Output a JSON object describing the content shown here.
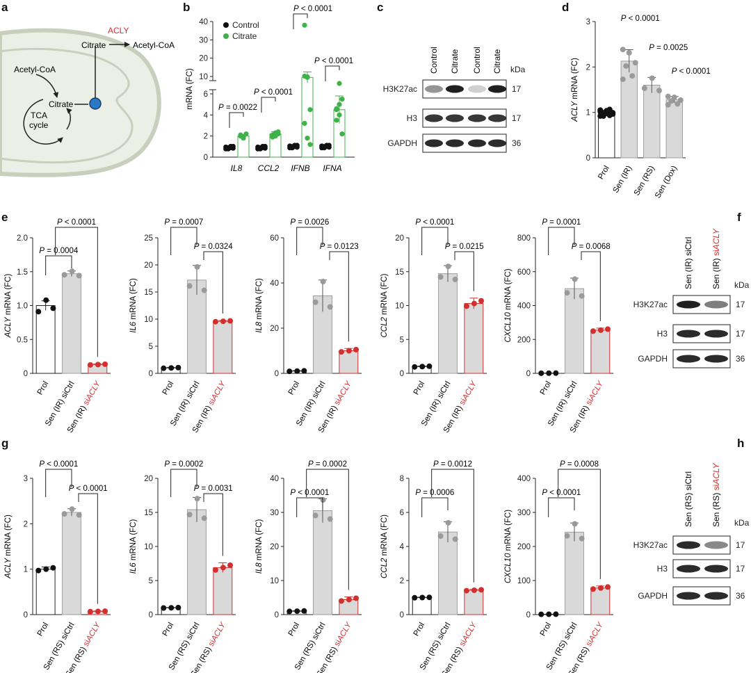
{
  "colors": {
    "black": "#111111",
    "green": "#3fb24a",
    "red": "#d32f2f",
    "bar": "#d9d9d9",
    "bar_edge": "#9e9e9e",
    "dot_grey": "#9a9a9a",
    "mito_fill": "#ecefe5",
    "mito_edge": "#c9cfbd",
    "node": "#2a79c7",
    "acly_red": "#d32f2f"
  },
  "panel_labels": [
    "a",
    "b",
    "c",
    "d",
    "e",
    "f",
    "g",
    "h"
  ],
  "panel_a": {
    "acly": "ACLY",
    "citrate_top": "Citrate",
    "acetyl_coa_top": "Acetyl-CoA",
    "acetyl_coa_left": "Acetyl-CoA",
    "citrate_mid": "Citrate",
    "tca": "TCA",
    "cycle": "cycle"
  },
  "blot_c": {
    "lanes": [
      "Control",
      "Citrate",
      "Control",
      "Citrate"
    ],
    "rows": [
      "H3K27ac",
      "H3",
      "GAPDH"
    ],
    "kda_label": "kDa",
    "kda": [
      "17",
      "17",
      "36"
    ],
    "icons": [
      "western-blot-band"
    ]
  },
  "blot_f": {
    "lanes": [
      {
        "pre": "Sen (IR) ",
        "mid": "siCtrl",
        "mid_red": false
      },
      {
        "pre": "Sen (IR) ",
        "mid": "siACLY",
        "mid_red": true
      }
    ],
    "rows": [
      "H3K27ac",
      "H3",
      "GAPDH"
    ],
    "kda_label": "kDa",
    "kda": [
      "17",
      "17",
      "36"
    ]
  },
  "blot_h": {
    "lanes": [
      {
        "pre": "Sen (RS) ",
        "mid": "siCtrl",
        "mid_red": false
      },
      {
        "pre": "Sen (RS) ",
        "mid": "siACLY",
        "mid_red": true
      }
    ],
    "rows": [
      "H3K27ac",
      "H3",
      "GAPDH"
    ],
    "kda_label": "kDa",
    "kda": [
      "17",
      "17",
      "36"
    ]
  },
  "chart_data": [
    {
      "id": "b",
      "type": "scatter",
      "ylabel": "mRNA (FC)",
      "legend": [
        "Control",
        "Citrate"
      ],
      "legend_position": "top-left",
      "categories": [
        "IL8",
        "CCL2",
        "IFNB",
        "IFNA"
      ],
      "y_lower_ticks": [
        "0",
        "2",
        "4",
        "6"
      ],
      "y_upper_ticks": [
        "10",
        "20",
        "30",
        "40"
      ],
      "y_break": [
        6,
        10
      ],
      "series": [
        {
          "name": "Control",
          "means": [
            0.9,
            0.9,
            1.0,
            1.0
          ]
        },
        {
          "name": "Citrate",
          "means": [
            2.0,
            2.2,
            9.5,
            4.5
          ],
          "sem": [
            0.15,
            0.2,
            3,
            1.3
          ]
        }
      ],
      "annotations": [
        "P = 0.0022",
        "P < 0.0001",
        "P < 0.0001",
        "P < 0.0001"
      ]
    },
    {
      "id": "d",
      "type": "bar",
      "ylabel": "ACLY mRNA (FC)",
      "categories": [
        "Prol",
        "Sen (IR)",
        "Sen (RS)",
        "Sen (Dox)"
      ],
      "values": [
        1.0,
        2.13,
        1.6,
        1.28
      ],
      "sem": [
        0.05,
        0.25,
        0.17,
        0.07
      ],
      "ylim": [
        0,
        3
      ],
      "yticks": [
        "0",
        "1",
        "2",
        "3"
      ],
      "annotations": [
        "P < 0.0001",
        "P = 0.0025",
        "P < 0.0001"
      ]
    },
    {
      "id": "e1",
      "type": "bar",
      "ylabel": "ACLY mRNA (FC)",
      "categories": [
        "Prol",
        "Sen (IR) siCtrl",
        "Sen (IR) siACLY"
      ],
      "values": [
        1.0,
        1.47,
        0.13
      ],
      "sem": [
        0.07,
        0.04,
        0.01
      ],
      "ylim": [
        0,
        2
      ],
      "yticks": [
        "0",
        "0.5",
        "1.0",
        "1.5",
        "2.0"
      ],
      "annotations": [
        "P = 0.0004",
        "P < 0.0001"
      ]
    },
    {
      "id": "e2",
      "type": "bar",
      "ylabel": "IL6 mRNA (FC)",
      "categories": [
        "Prol",
        "Sen (IR) siCtrl",
        "Sen (IR) siACLY"
      ],
      "values": [
        1.0,
        17.2,
        9.6
      ],
      "sem": [
        0.1,
        2.7,
        0.15
      ],
      "ylim": [
        0,
        25
      ],
      "yticks": [
        "0",
        "5",
        "10",
        "15",
        "20",
        "25"
      ],
      "annotations": [
        "P = 0.0007",
        "P = 0.0324"
      ]
    },
    {
      "id": "e3",
      "type": "bar",
      "ylabel": "IL8 mRNA (FC)",
      "categories": [
        "Prol",
        "Sen (IR) siCtrl",
        "Sen (IR) siACLY"
      ],
      "values": [
        1.0,
        34.3,
        10.0
      ],
      "sem": [
        0.2,
        7,
        1
      ],
      "ylim": [
        0,
        60
      ],
      "yticks": [
        "0",
        "20",
        "40",
        "60"
      ],
      "annotations": [
        "P = 0.0026",
        "P = 0.0123"
      ]
    },
    {
      "id": "e4",
      "type": "bar",
      "ylabel": "CCL2 mRNA (FC)",
      "categories": [
        "Prol",
        "Sen (IR) siCtrl",
        "Sen (IR) siACLY"
      ],
      "values": [
        1.0,
        14.7,
        10.3
      ],
      "sem": [
        0.08,
        1.2,
        0.8
      ],
      "ylim": [
        0,
        20
      ],
      "yticks": [
        "0",
        "5",
        "10",
        "15",
        "20"
      ],
      "annotations": [
        "P < 0.0001",
        "P = 0.0215"
      ]
    },
    {
      "id": "e5",
      "type": "bar",
      "ylabel": "CXCL10 mRNA (FC)",
      "categories": [
        "Prol",
        "Sen (IR) siCtrl",
        "Sen (IR) siACLY"
      ],
      "values": [
        1.0,
        500,
        255
      ],
      "sem": [
        0.5,
        62,
        12
      ],
      "ylim": [
        0,
        800
      ],
      "yticks": [
        "0",
        "200",
        "400",
        "600",
        "800"
      ],
      "annotations": [
        "P = 0.0001",
        "P = 0.0068"
      ]
    },
    {
      "id": "g1",
      "type": "bar",
      "ylabel": "ACLY mRNA (FC)",
      "categories": [
        "Prol",
        "Sen (RS) siCtrl",
        "Sen (RS) siACLY"
      ],
      "values": [
        1.0,
        2.25,
        0.07
      ],
      "sem": [
        0.05,
        0.08,
        0.01
      ],
      "ylim": [
        0,
        3
      ],
      "yticks": [
        "0",
        "1",
        "2",
        "3"
      ],
      "annotations": [
        "P < 0.0001",
        "P < 0.0001"
      ]
    },
    {
      "id": "g2",
      "type": "bar",
      "ylabel": "IL6 mRNA (FC)",
      "categories": [
        "Prol",
        "Sen (RS) siCtrl",
        "Sen (RS) siACLY"
      ],
      "values": [
        1.0,
        15.4,
        6.9
      ],
      "sem": [
        0.05,
        1.8,
        0.7
      ],
      "ylim": [
        0,
        20
      ],
      "yticks": [
        "0",
        "5",
        "10",
        "15",
        "20"
      ],
      "annotations": [
        "P = 0.0002",
        "P = 0.0031"
      ]
    },
    {
      "id": "g3",
      "type": "bar",
      "ylabel": "IL8 mRNA (FC)",
      "categories": [
        "Prol",
        "Sen (RS) siCtrl",
        "Sen (RS) siACLY"
      ],
      "values": [
        1.0,
        30.5,
        4.4
      ],
      "sem": [
        0.1,
        3.5,
        0.8
      ],
      "ylim": [
        0,
        40
      ],
      "yticks": [
        "0",
        "10",
        "20",
        "30",
        "40"
      ],
      "annotations": [
        "P < 0.0001",
        "P = 0.0002"
      ]
    },
    {
      "id": "g4",
      "type": "bar",
      "ylabel": "CCL2 mRNA (FC)",
      "categories": [
        "Prol",
        "Sen (RS) siCtrl",
        "Sen (RS) siACLY"
      ],
      "values": [
        1.0,
        4.85,
        1.43
      ],
      "sem": [
        0.02,
        0.6,
        0.05
      ],
      "ylim": [
        0,
        8
      ],
      "yticks": [
        "0",
        "2",
        "4",
        "6",
        "8"
      ],
      "annotations": [
        "P = 0.0006",
        "P = 0.0012"
      ]
    },
    {
      "id": "g5",
      "type": "bar",
      "ylabel": "CXCL10 mRNA (FC)",
      "categories": [
        "Prol",
        "Sen (RS) siCtrl",
        "Sen (RS) siACLY"
      ],
      "values": [
        1.0,
        242,
        78
      ],
      "sem": [
        0.3,
        27,
        6
      ],
      "ylim": [
        0,
        400
      ],
      "yticks": [
        "0",
        "100",
        "200",
        "300",
        "400"
      ],
      "annotations": [
        "P < 0.0001",
        "P = 0.0008"
      ]
    }
  ]
}
